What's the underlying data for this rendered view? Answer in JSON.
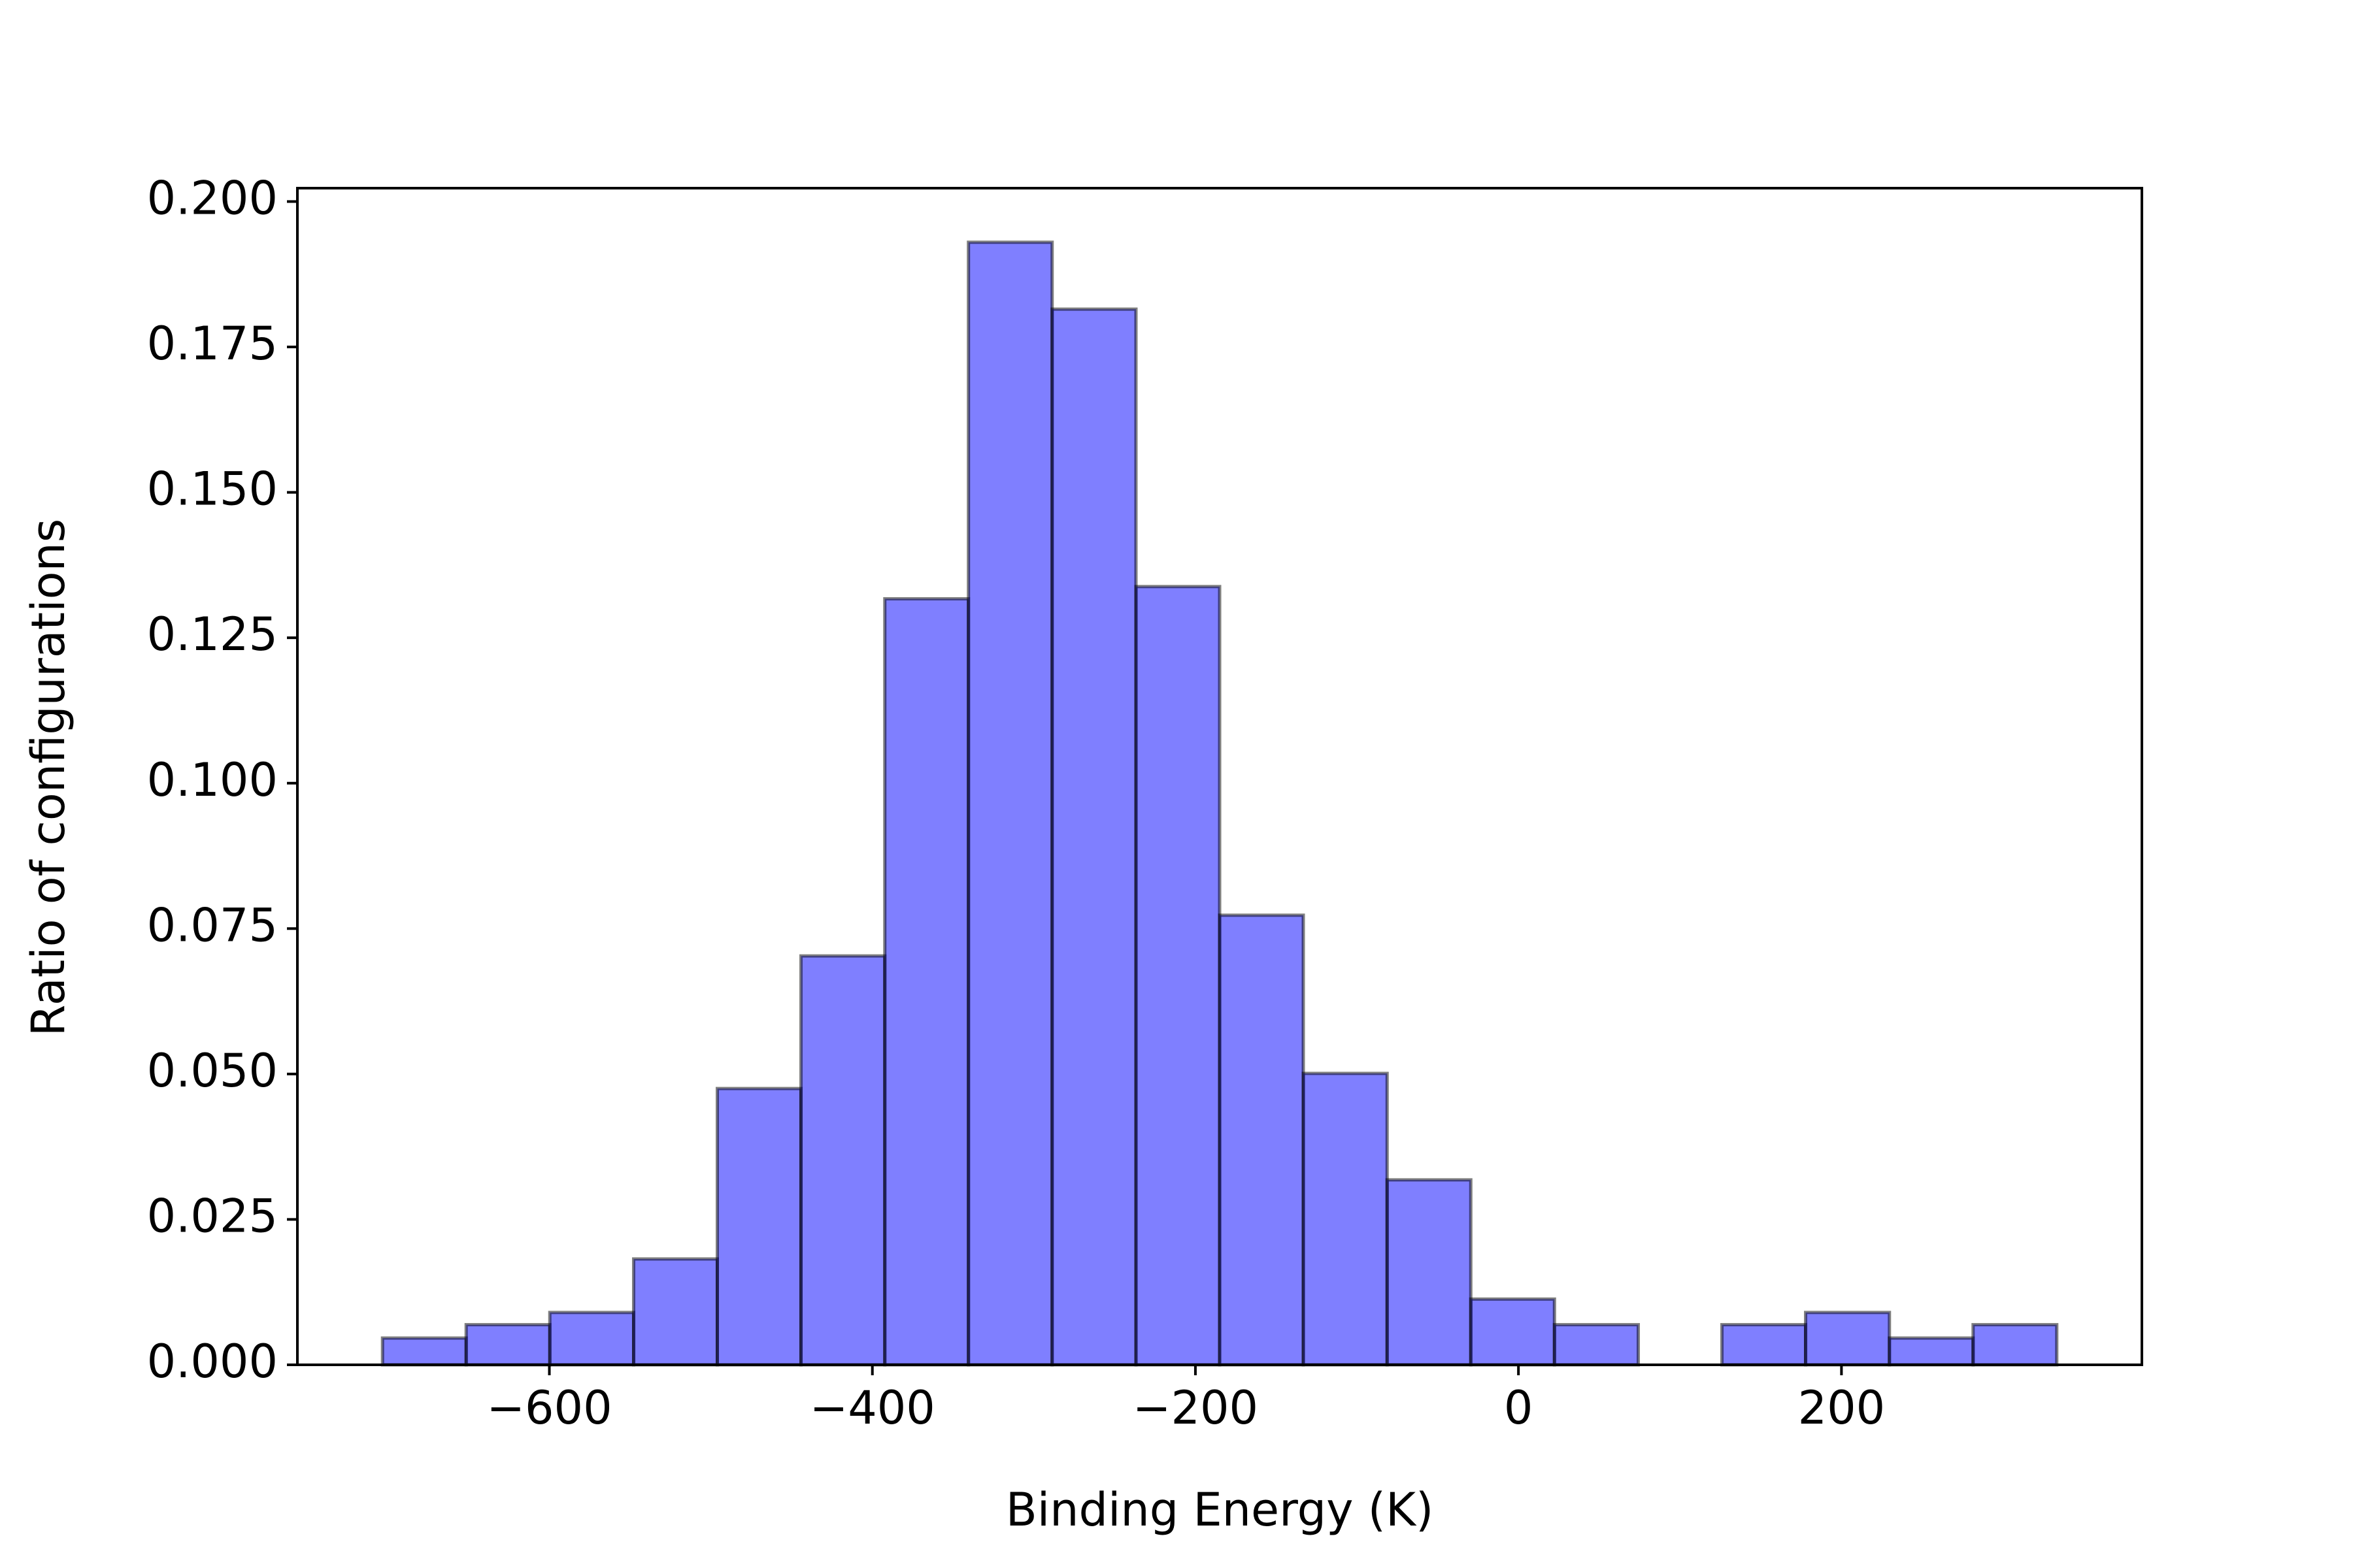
{
  "chart_data": {
    "type": "histogram",
    "x_label": "Binding Energy (K)",
    "y_label": "Ratio of configurations",
    "bins": [
      -703.3,
      -651.5,
      -599.7,
      -547.8,
      -496.0,
      -444.2,
      -392.3,
      -340.5,
      -288.7,
      -236.8,
      -185.0,
      -133.2,
      -81.3,
      -29.5,
      22.3,
      74.2,
      126.0,
      177.8,
      229.7,
      281.5,
      333.3
    ],
    "values": [
      0.0046,
      0.0069,
      0.009,
      0.0182,
      0.0475,
      0.0703,
      0.1317,
      0.193,
      0.1815,
      0.1338,
      0.0773,
      0.0501,
      0.0318,
      0.0113,
      0.0069,
      0,
      0.0069,
      0.009,
      0.0046,
      0.0069
    ],
    "color": "#0000ff",
    "edgecolor": "#000000",
    "alpha": 0.5,
    "xlim": [
      -756,
      386
    ],
    "ylim": [
      0,
      0.2023
    ],
    "xticks": [
      {
        "value": -600,
        "label": "−600"
      },
      {
        "value": -400,
        "label": "−400"
      },
      {
        "value": -200,
        "label": "−200"
      },
      0,
      200
    ],
    "yticks": [
      {
        "value": 0,
        "label": "0.000"
      },
      {
        "value": 0.025,
        "label": "0.025"
      },
      {
        "value": 0.05,
        "label": "0.050"
      },
      {
        "value": 0.075,
        "label": "0.075"
      },
      {
        "value": 0.1,
        "label": "0.100"
      },
      {
        "value": 0.125,
        "label": "0.125"
      },
      {
        "value": 0.15,
        "label": "0.150"
      },
      {
        "value": 0.175,
        "label": "0.175"
      },
      {
        "value": 0.2,
        "label": "0.200"
      }
    ]
  }
}
